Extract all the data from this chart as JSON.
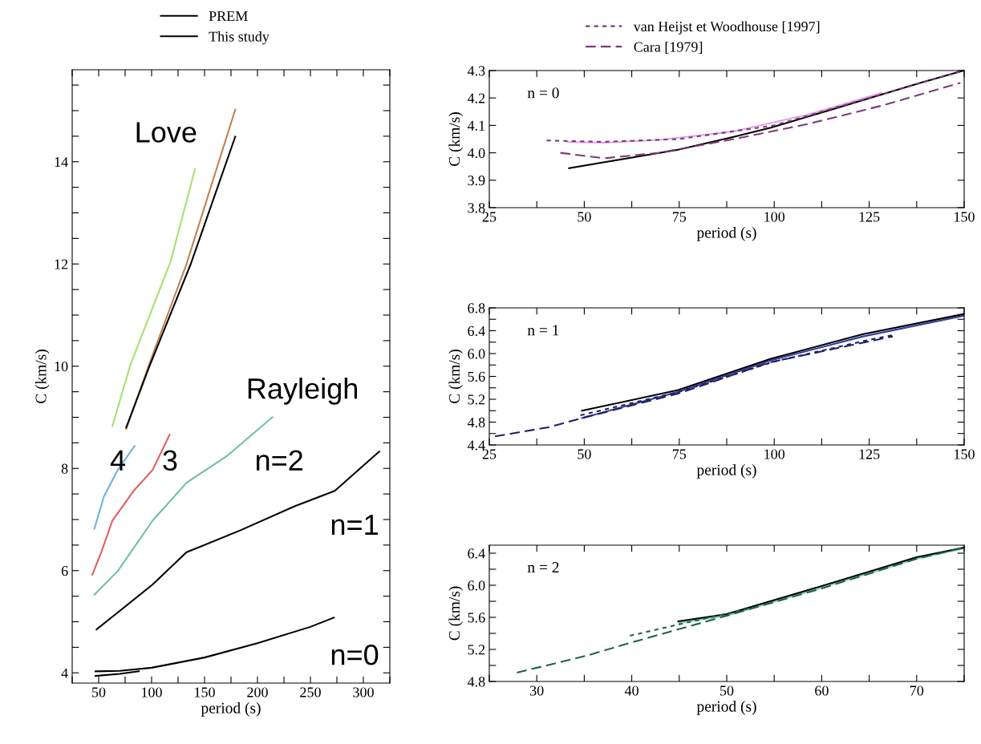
{
  "chart_data": [
    {
      "type": "line",
      "xlabel": "period (s)",
      "ylabel": "C (km/s)",
      "legend": "top",
      "grid": false,
      "xlim": [
        25,
        325
      ],
      "xticks": [
        {
          "value": 25,
          "label": null
        },
        50,
        {
          "value": 75,
          "label": null
        },
        100,
        {
          "value": 125,
          "label": null
        },
        150,
        {
          "value": 175,
          "label": null
        },
        200,
        {
          "value": 225,
          "label": null
        },
        250,
        {
          "value": 275,
          "label": null
        },
        300,
        {
          "value": 325,
          "label": null
        }
      ],
      "ylim": [
        3.8,
        15.8
      ],
      "yticks": [
        4,
        {
          "value": 4.5,
          "label": null
        },
        {
          "value": 5,
          "label": null
        },
        {
          "value": 5.5,
          "label": null
        },
        6,
        {
          "value": 6.5,
          "label": null
        },
        {
          "value": 7,
          "label": null
        },
        {
          "value": 7.5,
          "label": null
        },
        8,
        {
          "value": 8.5,
          "label": null
        },
        {
          "value": 9,
          "label": null
        },
        {
          "value": 9.5,
          "label": null
        },
        10,
        {
          "value": 10.5,
          "label": null
        },
        {
          "value": 11,
          "label": null
        },
        {
          "value": 11.5,
          "label": null
        },
        12,
        {
          "value": 12.5,
          "label": null
        },
        {
          "value": 13,
          "label": null
        },
        {
          "value": 13.5,
          "label": null
        },
        14,
        {
          "value": 14.5,
          "label": null
        },
        {
          "value": 15,
          "label": null
        },
        {
          "value": 15.5,
          "label": null
        }
      ],
      "series": [
        {
          "color": "#70c0a0",
          "x": [
            46,
            68,
            101,
            133,
            171,
            214
          ],
          "values": [
            5.53,
            5.99,
            6.98,
            7.72,
            8.24,
            9.0
          ]
        },
        {
          "color": "#e06060",
          "x": [
            44,
            53,
            63,
            83,
            101,
            117
          ],
          "values": [
            5.92,
            6.39,
            6.98,
            7.56,
            7.97,
            8.66
          ]
        },
        {
          "color": "#70b0e0",
          "x": [
            46,
            55,
            68,
            84
          ],
          "values": [
            6.82,
            7.45,
            7.97,
            8.44
          ]
        },
        {
          "color": "#a8e070",
          "x": [
            63,
            80,
            118,
            141
          ],
          "values": [
            8.83,
            10.03,
            12.05,
            13.86
          ]
        },
        {
          "color": "#c08050",
          "x": [
            76,
            97,
            133,
            179
          ],
          "values": [
            8.77,
            10.0,
            12.0,
            15.02
          ]
        },
        {
          "name": "PREM",
          "color": "#000000",
          "line_style": "solid",
          "x": [
            47,
            70,
            88,
            null,
            76,
            98,
            137,
            179
          ],
          "values": [
            3.94,
            3.98,
            4.03,
            null,
            8.8,
            10.0,
            12.0,
            14.49
          ]
        },
        {
          "name": "This study",
          "color": "#000000",
          "line_style": "solid",
          "x": [
            47,
            70,
            100,
            150,
            200,
            250,
            272,
            null,
            48,
            68,
            101,
            133,
            184,
            235,
            273,
            315
          ],
          "values": [
            4.03,
            4.04,
            4.1,
            4.3,
            4.58,
            4.9,
            5.08,
            null,
            4.85,
            5.18,
            5.73,
            6.36,
            6.79,
            7.26,
            7.56,
            8.33
          ]
        }
      ],
      "annotations": [
        "Love",
        "Rayleigh",
        "4",
        "3",
        "n=2",
        "n=1",
        "n=0"
      ]
    },
    {
      "type": "line",
      "xlabel": "period (s)",
      "ylabel": "C (km/s)",
      "legend": "top",
      "grid": false,
      "xlim": [
        25,
        150
      ],
      "xticks": [
        25,
        {
          "value": 37.5,
          "label": null
        },
        50,
        {
          "value": 62.5,
          "label": null
        },
        75,
        {
          "value": 87.5,
          "label": null
        },
        100,
        {
          "value": 112.5,
          "label": null
        },
        125,
        {
          "value": 137.5,
          "label": null
        },
        150
      ],
      "ylim": [
        3.8,
        4.3
      ],
      "yticks": [
        {
          "value": 3.8,
          "label": "3.8"
        },
        {
          "value": 3.9,
          "label": "3.9"
        },
        {
          "value": 4.0,
          "label": "4.0"
        },
        {
          "value": 4.1,
          "label": "4.1"
        },
        {
          "value": 4.2,
          "label": "4.2"
        },
        {
          "value": 4.3,
          "label": "4.3"
        }
      ],
      "series": [
        {
          "color": "#e8a0e8",
          "x": [
            45.5,
            55.2,
            69.8,
            89.3,
            108.8,
            128.3
          ],
          "values": [
            4.04,
            4.037,
            4.047,
            4.078,
            4.139,
            4.219
          ]
        },
        {
          "color": "#000000",
          "line_style": "solid",
          "x": [
            46,
            60.1,
            74.7,
            89.3,
            99.1,
            118.6,
            138,
            149.8
          ],
          "values": [
            3.944,
            3.977,
            4.011,
            4.058,
            4.092,
            4.172,
            4.253,
            4.3
          ]
        },
        {
          "name": "van Heijst et Woodhouse [1997]",
          "color": "#7a3a7a",
          "line_style": "dotted",
          "x": [
            40.1,
            55,
            75,
            100,
            125,
            149.8
          ],
          "values": [
            4.045,
            4.04,
            4.05,
            4.1,
            4.2,
            4.3
          ]
        },
        {
          "name": "Cara [1979]",
          "color": "#7a3a7a",
          "line_style": "dashed",
          "x": [
            43.7,
            55.2,
            69.8,
            89.3,
            108.8,
            128.3,
            149
          ],
          "values": [
            4.0,
            3.98,
            4.0,
            4.05,
            4.105,
            4.172,
            4.255
          ]
        }
      ],
      "annotations": [
        "n = 0"
      ]
    },
    {
      "type": "line",
      "xlabel": "period (s)",
      "ylabel": "C (km/s)",
      "grid": false,
      "xlim": [
        25,
        150
      ],
      "xticks": [
        25,
        {
          "value": 37.5,
          "label": null
        },
        50,
        {
          "value": 62.5,
          "label": null
        },
        75,
        {
          "value": 87.5,
          "label": null
        },
        100,
        {
          "value": 112.5,
          "label": null
        },
        125,
        {
          "value": 137.5,
          "label": null
        },
        150
      ],
      "ylim": [
        4.4,
        6.8
      ],
      "yticks": [
        {
          "value": 4.4,
          "label": "4.4"
        },
        {
          "value": 4.6,
          "label": null
        },
        {
          "value": 4.8,
          "label": "4.8"
        },
        {
          "value": 5.0,
          "label": null
        },
        {
          "value": 5.2,
          "label": "5.2"
        },
        {
          "value": 5.4,
          "label": null
        },
        {
          "value": 5.6,
          "label": "5.6"
        },
        {
          "value": 5.8,
          "label": null
        },
        {
          "value": 6.0,
          "label": "6.0"
        },
        {
          "value": 6.2,
          "label": null
        },
        {
          "value": 6.4,
          "label": "6.4"
        },
        {
          "value": 6.6,
          "label": null
        },
        {
          "value": 6.8,
          "label": "6.8"
        }
      ],
      "series": [
        {
          "color": "#3040a0",
          "x": [
            49.4,
            74.7,
            99.1,
            123.4,
            149.8
          ],
          "values": [
            4.87,
            5.33,
            5.88,
            6.3,
            6.66
          ]
        },
        {
          "color": "#000000",
          "line_style": "solid",
          "x": [
            49.4,
            74.7,
            99.1,
            123.4,
            149.8
          ],
          "values": [
            5.0,
            5.36,
            5.91,
            6.34,
            6.69
          ]
        },
        {
          "color": "#202060",
          "line_style": "dotted",
          "x": [
            49,
            75,
            100,
            125,
            131
          ],
          "values": [
            4.92,
            5.33,
            5.86,
            6.24,
            6.32
          ]
        },
        {
          "color": "#202060",
          "line_style": "dashed",
          "x": [
            26.5,
            40.6,
            49.4,
            74.7,
            99.1,
            131.2
          ],
          "values": [
            4.55,
            4.71,
            4.87,
            5.3,
            5.85,
            6.3
          ]
        }
      ],
      "annotations": [
        "n = 1"
      ]
    },
    {
      "type": "line",
      "xlabel": "period (s)",
      "ylabel": "C (km/s)",
      "grid": false,
      "xlim": [
        25,
        75
      ],
      "xticks": [
        {
          "value": 25,
          "label": null
        },
        30,
        {
          "value": 35,
          "label": null
        },
        40,
        {
          "value": 45,
          "label": null
        },
        50,
        {
          "value": 55,
          "label": null
        },
        60,
        {
          "value": 65,
          "label": null
        },
        70,
        {
          "value": 75,
          "label": null
        }
      ],
      "ylim": [
        4.8,
        6.5
      ],
      "yticks": [
        {
          "value": 4.8,
          "label": "4.8"
        },
        {
          "value": 5.0,
          "label": null
        },
        {
          "value": 5.2,
          "label": "5.2"
        },
        {
          "value": 5.4,
          "label": null
        },
        {
          "value": 5.6,
          "label": "5.6"
        },
        {
          "value": 5.8,
          "label": null
        },
        {
          "value": 6.0,
          "label": "6.0"
        },
        {
          "value": 6.2,
          "label": null
        },
        {
          "value": 6.4,
          "label": "6.4"
        }
      ],
      "series": [
        {
          "color": "#80d8b0",
          "x": [
            45,
            50,
            60,
            70,
            75
          ],
          "values": [
            5.53,
            5.62,
            5.97,
            6.33,
            6.46
          ]
        },
        {
          "color": "#000000",
          "line_style": "solid",
          "x": [
            44.9,
            50,
            60,
            70,
            75
          ],
          "values": [
            5.55,
            5.64,
            5.99,
            6.35,
            6.47
          ]
        },
        {
          "color": "#206050",
          "line_style": "dotted",
          "x": [
            39.8,
            44.9,
            53.5
          ],
          "values": [
            5.37,
            5.51,
            5.74
          ]
        },
        {
          "color": "#206050",
          "line_style": "dashed",
          "x": [
            27.9,
            35.2,
            39.8,
            50,
            60,
            70,
            75
          ],
          "values": [
            4.91,
            5.12,
            5.28,
            5.62,
            5.96,
            6.33,
            6.47
          ]
        }
      ],
      "annotations": [
        "n = 2"
      ]
    }
  ]
}
